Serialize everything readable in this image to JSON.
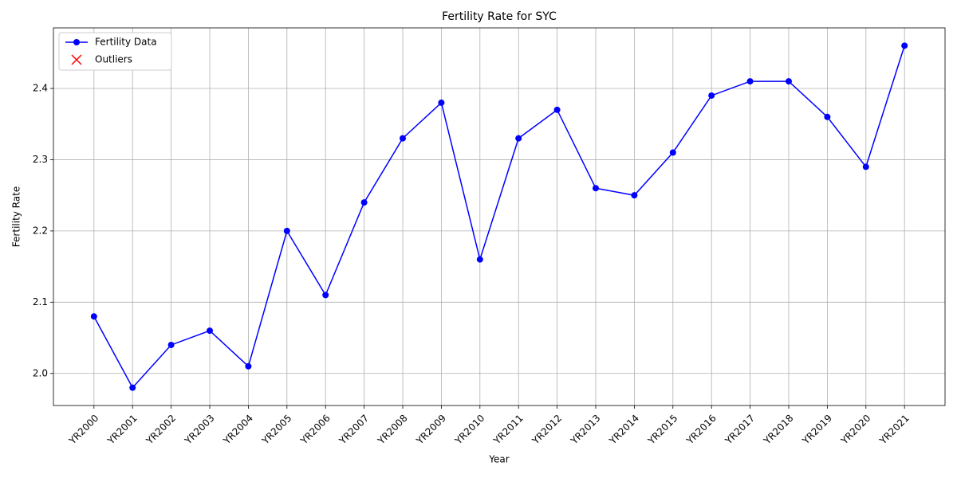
{
  "chart_data": {
    "type": "line",
    "title": "Fertility Rate for SYC",
    "xlabel": "Year",
    "ylabel": "Fertility Rate",
    "categories": [
      "YR2000",
      "YR2001",
      "YR2002",
      "YR2003",
      "YR2004",
      "YR2005",
      "YR2006",
      "YR2007",
      "YR2008",
      "YR2009",
      "YR2010",
      "YR2011",
      "YR2012",
      "YR2013",
      "YR2014",
      "YR2015",
      "YR2016",
      "YR2017",
      "YR2018",
      "YR2019",
      "YR2020",
      "YR2021"
    ],
    "series": [
      {
        "name": "Fertility Data",
        "color": "#0000ff",
        "marker": "o",
        "values": [
          2.08,
          1.98,
          2.04,
          2.06,
          2.01,
          2.2,
          2.11,
          2.24,
          2.33,
          2.38,
          2.16,
          2.33,
          2.37,
          2.26,
          2.25,
          2.31,
          2.39,
          2.41,
          2.41,
          2.36,
          2.29,
          2.46
        ]
      },
      {
        "name": "Outliers",
        "color": "#ff0000",
        "marker": "x",
        "values": [
          null,
          null,
          null,
          null,
          null,
          null,
          null,
          null,
          null,
          null,
          null,
          null,
          null,
          null,
          null,
          null,
          null,
          null,
          null,
          null,
          null,
          null
        ]
      }
    ],
    "ylim": [
      1.955,
      2.485
    ],
    "yticks": [
      {
        "value": 2,
        "label": "2.0"
      },
      2.1,
      2.2,
      2.3,
      2.4
    ],
    "grid": true,
    "legend": "upper left"
  }
}
